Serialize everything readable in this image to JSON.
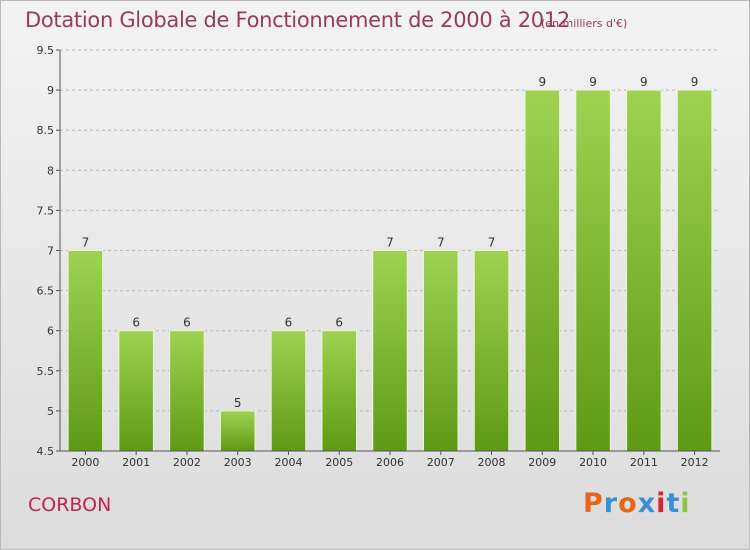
{
  "header": {
    "title": "Dotation Globale de Fonctionnement de 2000 à 2012",
    "unit_note": "(en milliers d'€)"
  },
  "footer": {
    "commune": "CORBON",
    "logo_text": "Proxiti",
    "logo_colors": [
      "#e8661b",
      "#3c8ed6",
      "#e8661b",
      "#3c8ed6",
      "#d8262b",
      "#3c8ed6",
      "#8cc63f"
    ]
  },
  "chart_data": {
    "type": "bar",
    "title": "Dotation Globale de Fonctionnement de 2000 à 2012",
    "xlabel": "",
    "ylabel": "",
    "categories": [
      "2000",
      "2001",
      "2002",
      "2003",
      "2004",
      "2005",
      "2006",
      "2007",
      "2008",
      "2009",
      "2010",
      "2011",
      "2012"
    ],
    "values": [
      7,
      6,
      6,
      5,
      6,
      6,
      7,
      7,
      7,
      9,
      9,
      9,
      9
    ],
    "ylim": [
      4.5,
      9.5
    ],
    "yticks": [
      4.5,
      5,
      5.5,
      6,
      6.5,
      7,
      7.5,
      8,
      8.5,
      9,
      9.5
    ],
    "grid": "horizontal dashed",
    "bar_color_top": "#9fd252",
    "bar_color_bottom": "#5e9a15"
  }
}
